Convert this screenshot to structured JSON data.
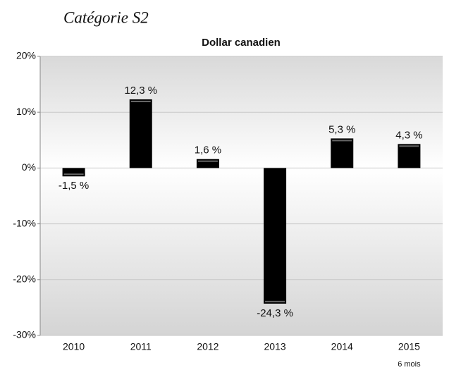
{
  "heading": "Catégorie S2",
  "chart_data": {
    "type": "bar",
    "title": "Dollar canadien",
    "categories": [
      "2010",
      "2011",
      "2012",
      "2013",
      "2014",
      "2015"
    ],
    "category_notes": [
      null,
      null,
      null,
      null,
      null,
      "6 mois"
    ],
    "values": [
      -1.5,
      12.3,
      1.6,
      -24.3,
      5.3,
      4.3
    ],
    "value_labels": [
      "-1,5 %",
      "12,3 %",
      "1,6 %",
      "-24,3 %",
      "5,3 %",
      "4,3 %"
    ],
    "color": "#000000",
    "ylim": [
      -30,
      20
    ],
    "yticks": [
      {
        "value": -30,
        "label": "-30%"
      },
      {
        "value": -20,
        "label": "-20%"
      },
      {
        "value": -10,
        "label": "-10%"
      },
      {
        "value": 0,
        "label": "0%"
      },
      {
        "value": 10,
        "label": "10%"
      },
      {
        "value": 20,
        "label": "20%"
      }
    ],
    "grid": true
  }
}
